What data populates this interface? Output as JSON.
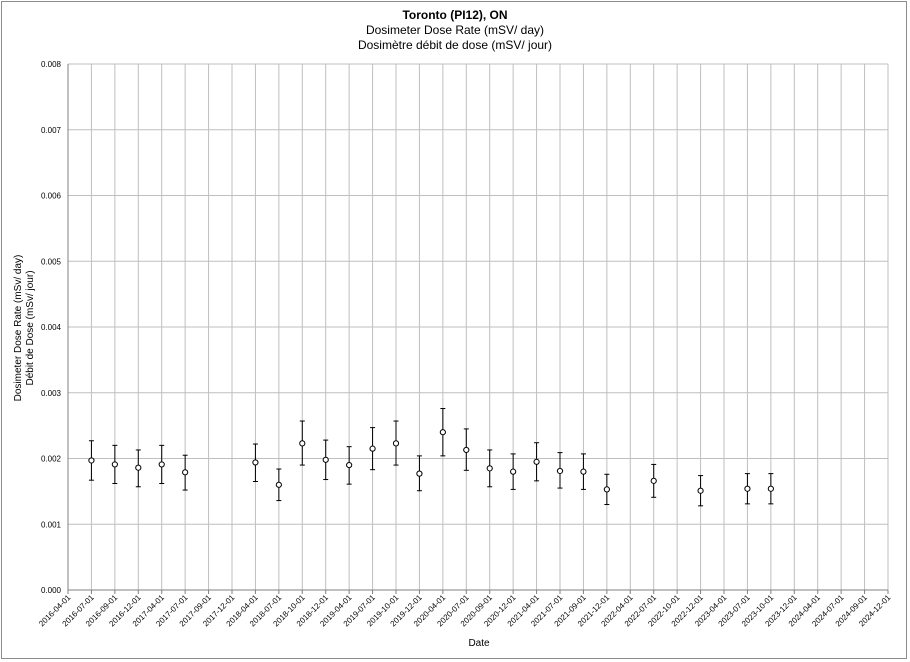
{
  "chart_data": {
    "type": "scatter",
    "title": "Toronto (PI12), ON",
    "subtitle_en": "Dosimeter Dose Rate (mSV/ day)",
    "subtitle_fr": "Dosimètre débit de dose (mSV/ jour)",
    "xlabel": "Date",
    "ylabel_en": "Dosimeter Dose Rate (mSv/ day)",
    "ylabel_fr": "Débit de Dose (mSv/ jour)",
    "ylim": [
      0,
      0.008
    ],
    "yticks": [
      "0.000",
      "0.001",
      "0.002",
      "0.003",
      "0.004",
      "0.005",
      "0.006",
      "0.007",
      "0.008"
    ],
    "xticks": [
      "2016-04-01",
      "2016-07-01",
      "2016-09-01",
      "2016-12-01",
      "2017-04-01",
      "2017-07-01",
      "2017-09-01",
      "2017-12-01",
      "2018-04-01",
      "2018-07-01",
      "2018-10-01",
      "2018-12-01",
      "2019-04-01",
      "2019-07-01",
      "2019-10-01",
      "2019-12-01",
      "2020-04-01",
      "2020-07-01",
      "2020-09-01",
      "2020-12-01",
      "2021-04-01",
      "2021-07-01",
      "2021-09-01",
      "2021-12-01",
      "2022-04-01",
      "2022-07-01",
      "2022-10-01",
      "2022-12-01",
      "2023-04-01",
      "2023-07-01",
      "2023-10-01",
      "2023-12-01",
      "2024-04-01",
      "2024-07-01",
      "2024-09-01",
      "2024-12-01"
    ],
    "grid": true,
    "points": [
      {
        "x": "2016-07-01",
        "y": 0.00197,
        "ylo": 0.00167,
        "yhi": 0.00227
      },
      {
        "x": "2016-09-01",
        "y": 0.00191,
        "ylo": 0.00162,
        "yhi": 0.0022
      },
      {
        "x": "2016-12-01",
        "y": 0.00186,
        "ylo": 0.00157,
        "yhi": 0.00213
      },
      {
        "x": "2017-04-01",
        "y": 0.00191,
        "ylo": 0.00162,
        "yhi": 0.0022
      },
      {
        "x": "2017-07-01",
        "y": 0.00179,
        "ylo": 0.00152,
        "yhi": 0.00205
      },
      {
        "x": "2018-04-01",
        "y": 0.00194,
        "ylo": 0.00165,
        "yhi": 0.00222
      },
      {
        "x": "2018-07-01",
        "y": 0.0016,
        "ylo": 0.00136,
        "yhi": 0.00184
      },
      {
        "x": "2018-10-01",
        "y": 0.00223,
        "ylo": 0.0019,
        "yhi": 0.00257
      },
      {
        "x": "2018-12-01",
        "y": 0.00198,
        "ylo": 0.00168,
        "yhi": 0.00228
      },
      {
        "x": "2019-04-01",
        "y": 0.0019,
        "ylo": 0.00161,
        "yhi": 0.00218
      },
      {
        "x": "2019-07-01",
        "y": 0.00215,
        "ylo": 0.00183,
        "yhi": 0.00247
      },
      {
        "x": "2019-10-01",
        "y": 0.00223,
        "ylo": 0.0019,
        "yhi": 0.00257
      },
      {
        "x": "2019-12-01",
        "y": 0.00177,
        "ylo": 0.00151,
        "yhi": 0.00204
      },
      {
        "x": "2020-04-01",
        "y": 0.0024,
        "ylo": 0.00204,
        "yhi": 0.00276
      },
      {
        "x": "2020-07-01",
        "y": 0.00213,
        "ylo": 0.00182,
        "yhi": 0.00245
      },
      {
        "x": "2020-09-01",
        "y": 0.00185,
        "ylo": 0.00157,
        "yhi": 0.00213
      },
      {
        "x": "2020-12-01",
        "y": 0.0018,
        "ylo": 0.00153,
        "yhi": 0.00207
      },
      {
        "x": "2021-04-01",
        "y": 0.00195,
        "ylo": 0.00166,
        "yhi": 0.00224
      },
      {
        "x": "2021-07-01",
        "y": 0.00181,
        "ylo": 0.00155,
        "yhi": 0.00209
      },
      {
        "x": "2021-09-01",
        "y": 0.0018,
        "ylo": 0.00153,
        "yhi": 0.00207
      },
      {
        "x": "2021-12-01",
        "y": 0.00153,
        "ylo": 0.0013,
        "yhi": 0.00176
      },
      {
        "x": "2022-07-01",
        "y": 0.00166,
        "ylo": 0.00141,
        "yhi": 0.00191
      },
      {
        "x": "2022-12-01",
        "y": 0.00151,
        "ylo": 0.00128,
        "yhi": 0.00174
      },
      {
        "x": "2023-07-01",
        "y": 0.00154,
        "ylo": 0.00131,
        "yhi": 0.00177
      },
      {
        "x": "2023-10-01",
        "y": 0.00154,
        "ylo": 0.00131,
        "yhi": 0.00177
      }
    ],
    "colors": {
      "marker": "#000000",
      "grid": "#bfbfbf",
      "axis": "#808080",
      "frame": "#8c8c8c"
    }
  }
}
